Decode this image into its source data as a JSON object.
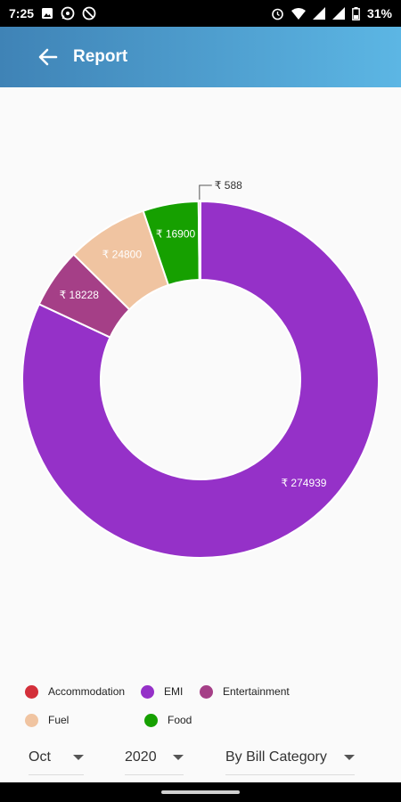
{
  "status_bar": {
    "time": "7:25",
    "battery": "31%",
    "left_icons": [
      "image-icon",
      "whatsapp-icon",
      "blocked-icon"
    ],
    "right_icons": [
      "alarm-icon",
      "wifi-icon",
      "signal-icon",
      "battery-icon"
    ]
  },
  "header": {
    "title": "Report",
    "back_icon": "arrow-left-icon"
  },
  "chart_data": {
    "type": "pie",
    "donut": true,
    "slices": [
      {
        "label": "EMI",
        "value": 274939,
        "display": "₹ 274939",
        "color": "#9531c8"
      },
      {
        "label": "Entertainment",
        "value": 18228,
        "display": "₹ 18228",
        "color": "#a53f87"
      },
      {
        "label": "Fuel",
        "value": 24800,
        "display": "₹ 24800",
        "color": "#f0c4a1"
      },
      {
        "label": "Food",
        "value": 16900,
        "display": "₹ 16900",
        "color": "#16a000"
      },
      {
        "label": "Accommodation",
        "value": 588,
        "display": "₹ 588",
        "color": "#d32f3a"
      }
    ]
  },
  "legend": {
    "items": [
      {
        "label": "Accommodation",
        "color": "#d32f3a"
      },
      {
        "label": "EMI",
        "color": "#9531c8"
      },
      {
        "label": "Entertainment",
        "color": "#a53f87"
      },
      {
        "label": "Fuel",
        "color": "#f0c4a1"
      },
      {
        "label": "Food",
        "color": "#16a000"
      }
    ]
  },
  "filters": {
    "month": "Oct",
    "year": "2020",
    "category": "By Bill Category"
  }
}
